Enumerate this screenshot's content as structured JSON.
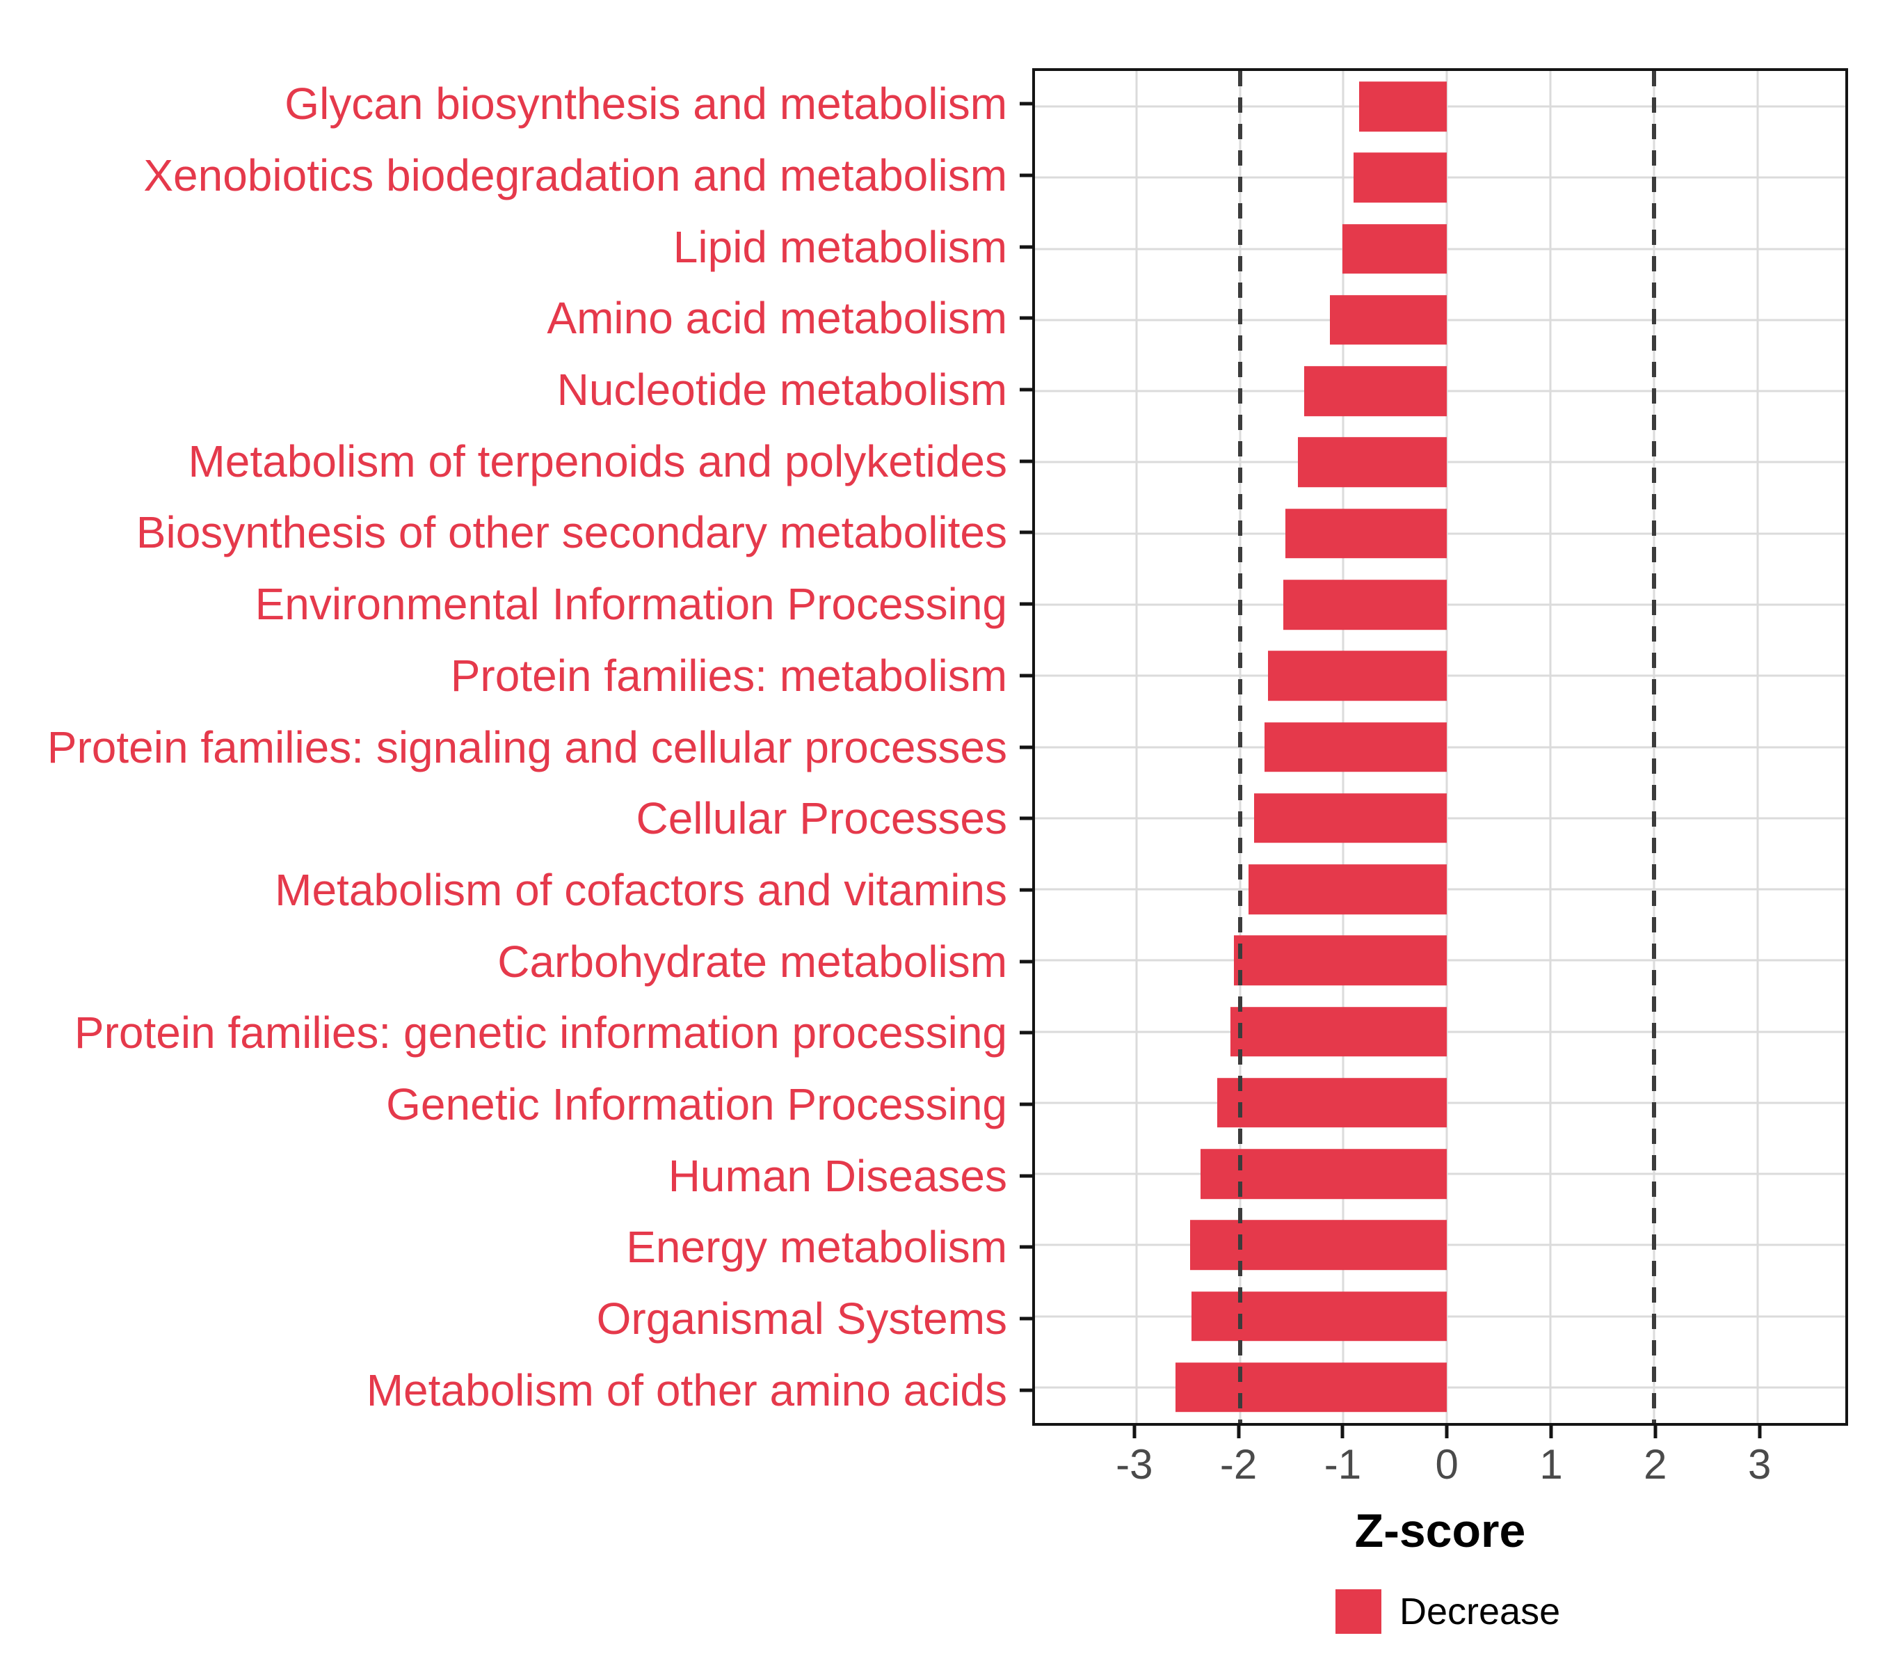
{
  "chart_data": {
    "type": "bar",
    "orientation": "horizontal",
    "title": "",
    "xlabel": "Z-score",
    "ylabel": "",
    "xlim": [
      -3.98,
      3.85
    ],
    "x_ticks": [
      -3,
      -2,
      -1,
      0,
      1,
      2,
      3
    ],
    "x_tick_labels": [
      "-3",
      "-2",
      "-1",
      "0",
      "1",
      "2",
      "3"
    ],
    "reference_lines": [
      -2,
      2
    ],
    "grid": true,
    "categories": [
      "Glycan biosynthesis and metabolism",
      "Xenobiotics biodegradation and metabolism",
      "Lipid metabolism",
      "Amino acid metabolism",
      "Nucleotide metabolism",
      "Metabolism of terpenoids and polyketides",
      "Biosynthesis of other secondary metabolites",
      "Environmental Information Processing",
      "Protein families: metabolism",
      "Protein families: signaling and cellular processes",
      "Cellular Processes",
      "Metabolism of cofactors and vitamins",
      "Carbohydrate metabolism",
      "Protein families: genetic information processing",
      "Genetic Information Processing",
      "Human Diseases",
      "Energy metabolism",
      "Organismal Systems",
      "Metabolism of other amino acids"
    ],
    "series": [
      {
        "name": "Decrease",
        "values": [
          -0.85,
          -0.9,
          -1.01,
          -1.13,
          -1.38,
          -1.44,
          -1.56,
          -1.58,
          -1.73,
          -1.76,
          -1.86,
          -1.92,
          -2.06,
          -2.09,
          -2.22,
          -2.38,
          -2.48,
          -2.47,
          -2.62
        ]
      }
    ],
    "bar_width_fraction": 0.7,
    "legend_position": "bottom",
    "colors": {
      "bar": "#E5394B",
      "category_label": "#E5394B",
      "tick_label": "#4A4A4A",
      "axis_title": "#000000",
      "gridline": "#DBDBDB",
      "reference_line": "#3C3C3C",
      "panel_border": "#141414",
      "background": "#FFFFFF"
    }
  },
  "legend": {
    "items": [
      {
        "label": "Decrease",
        "color": "#E5394B"
      }
    ]
  }
}
